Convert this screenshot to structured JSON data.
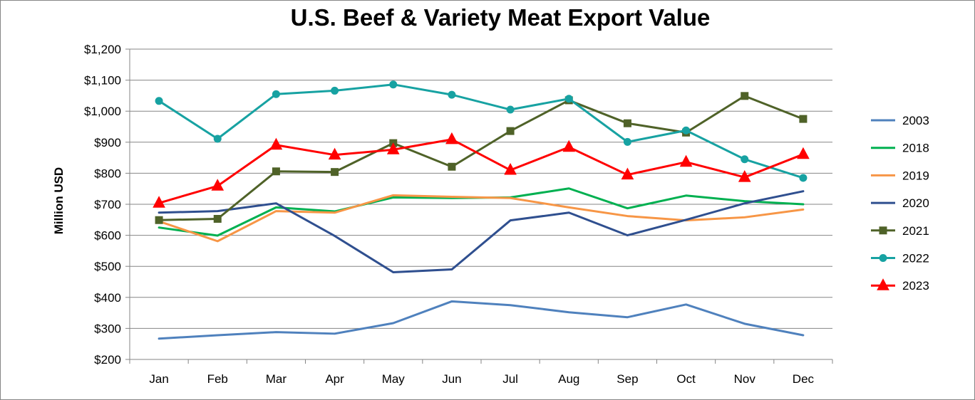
{
  "chart_data": {
    "type": "line",
    "title": "U.S. Beef & Variety Meat Export Value",
    "ylabel": "Million USD",
    "xlabel": "",
    "categories": [
      "Jan",
      "Feb",
      "Mar",
      "Apr",
      "May",
      "Jun",
      "Jul",
      "Aug",
      "Sep",
      "Oct",
      "Nov",
      "Dec"
    ],
    "ylim": [
      200,
      1200
    ],
    "yticks": [
      200,
      300,
      400,
      500,
      600,
      700,
      800,
      900,
      1000,
      1100,
      1200
    ],
    "ytick_labels": [
      "$200",
      "$300",
      "$400",
      "$500",
      "$600",
      "$700",
      "$800",
      "$900",
      "$1,000",
      "$1,100",
      "$1,200"
    ],
    "grid": "horizontal",
    "legend_position": "right",
    "series": [
      {
        "name": "2003",
        "color": "#4f81bd",
        "marker": "none",
        "values": [
          267,
          278,
          288,
          283,
          317,
          387,
          375,
          352,
          336,
          377,
          315,
          278
        ]
      },
      {
        "name": "2018",
        "color": "#00b050",
        "marker": "none",
        "values": [
          625,
          599,
          690,
          677,
          722,
          720,
          722,
          751,
          687,
          728,
          710,
          700
        ]
      },
      {
        "name": "2019",
        "color": "#f79646",
        "marker": "none",
        "values": [
          645,
          581,
          678,
          673,
          729,
          724,
          720,
          690,
          662,
          648,
          658,
          683
        ]
      },
      {
        "name": "2020",
        "color": "#2f4f8f",
        "marker": "none",
        "values": [
          673,
          678,
          703,
          598,
          481,
          490,
          648,
          673,
          600,
          650,
          703,
          742
        ]
      },
      {
        "name": "2021",
        "color": "#4f6228",
        "marker": "square",
        "values": [
          649,
          653,
          806,
          804,
          897,
          821,
          936,
          1035,
          961,
          931,
          1049,
          975
        ]
      },
      {
        "name": "2022",
        "color": "#17a2a2",
        "marker": "circle",
        "values": [
          1033,
          911,
          1055,
          1066,
          1086,
          1053,
          1005,
          1040,
          901,
          938,
          845,
          785
        ]
      },
      {
        "name": "2023",
        "color": "#ff0000",
        "marker": "triangle",
        "values": [
          704,
          759,
          891,
          859,
          876,
          909,
          810,
          884,
          795,
          836,
          787,
          861
        ]
      }
    ]
  }
}
